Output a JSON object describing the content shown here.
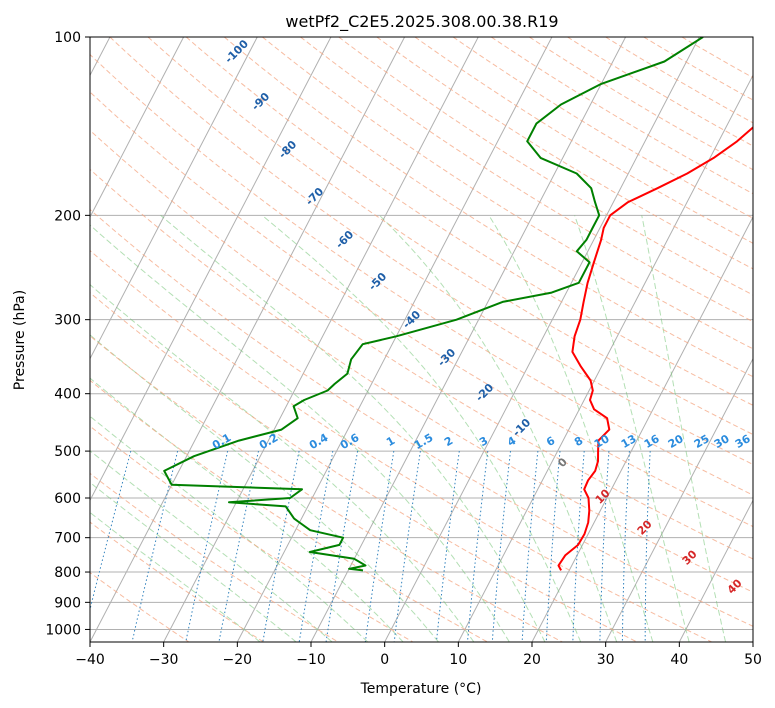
{
  "chart_data": {
    "type": "line",
    "title": "wetPf2_C2E5.2025.308.00.38.R19",
    "xlabel": "Temperature (°C)",
    "ylabel": "Pressure (hPa)",
    "xlim": [
      -40,
      50
    ],
    "ylim": [
      1050,
      100
    ],
    "y_scale": "log",
    "x_ticks": [
      -40,
      -30,
      -20,
      -10,
      0,
      10,
      20,
      30,
      40,
      50
    ],
    "y_ticks": [
      100,
      200,
      300,
      400,
      500,
      600,
      700,
      800,
      900,
      1000
    ],
    "grid": true,
    "series": [
      {
        "color": "#ff0000",
        "points": [
          [
            13,
            100
          ],
          [
            13.5,
            110
          ],
          [
            15,
            120
          ],
          [
            15.2,
            130
          ],
          [
            14,
            140
          ],
          [
            12.5,
            150
          ],
          [
            10.5,
            160
          ],
          [
            8,
            170
          ],
          [
            5,
            180
          ],
          [
            2,
            190
          ],
          [
            0.5,
            200
          ],
          [
            0.5,
            210
          ],
          [
            1,
            220
          ],
          [
            1.6,
            240
          ],
          [
            2.2,
            260
          ],
          [
            3,
            280
          ],
          [
            3.8,
            300
          ],
          [
            4.2,
            320
          ],
          [
            5,
            340
          ],
          [
            7.2,
            360
          ],
          [
            9.5,
            380
          ],
          [
            10.5,
            395
          ],
          [
            10.8,
            410
          ],
          [
            12,
            425
          ],
          [
            14.4,
            440
          ],
          [
            15.5,
            460
          ],
          [
            14.8,
            480
          ],
          [
            15.5,
            500
          ],
          [
            16.2,
            520
          ],
          [
            16.5,
            540
          ],
          [
            16.2,
            560
          ],
          [
            16.3,
            580
          ],
          [
            17.5,
            600
          ],
          [
            18.5,
            630
          ],
          [
            19.2,
            660
          ],
          [
            19.5,
            690
          ],
          [
            19.4,
            720
          ],
          [
            18.4,
            750
          ],
          [
            18.2,
            780
          ],
          [
            18.9,
            795
          ]
        ]
      },
      {
        "color": "#008000",
        "points": [
          [
            0.5,
            100
          ],
          [
            -3,
            110
          ],
          [
            -10,
            120
          ],
          [
            -14,
            130
          ],
          [
            -16,
            140
          ],
          [
            -16,
            150
          ],
          [
            -13,
            160
          ],
          [
            -7,
            170
          ],
          [
            -4,
            180
          ],
          [
            -2.5,
            190
          ],
          [
            -1,
            200
          ],
          [
            -1,
            210
          ],
          [
            -1,
            220
          ],
          [
            -1.5,
            230
          ],
          [
            1,
            240
          ],
          [
            1,
            260
          ],
          [
            -2,
            270
          ],
          [
            -8,
            280
          ],
          [
            -13,
            300
          ],
          [
            -20,
            320
          ],
          [
            -24,
            330
          ],
          [
            -24.5,
            350
          ],
          [
            -24,
            370
          ],
          [
            -25,
            385
          ],
          [
            -25.5,
            395
          ],
          [
            -28,
            410
          ],
          [
            -29,
            420
          ],
          [
            -27.6,
            440
          ],
          [
            -29,
            460
          ],
          [
            -34,
            480
          ],
          [
            -39,
            510
          ],
          [
            -42,
            540
          ],
          [
            -40,
            570
          ],
          [
            -22,
            580
          ],
          [
            -23,
            600
          ],
          [
            -31,
            610
          ],
          [
            -23,
            620
          ],
          [
            -21,
            650
          ],
          [
            -20,
            660
          ],
          [
            -18,
            680
          ],
          [
            -13,
            700
          ],
          [
            -13,
            720
          ],
          [
            -16.5,
            740
          ],
          [
            -10,
            760
          ],
          [
            -8,
            780
          ],
          [
            -10,
            790
          ],
          [
            -8,
            795
          ]
        ]
      }
    ],
    "dry_adiabat_labels": [
      "-100",
      "-90",
      "-80",
      "-70",
      "-60",
      "-50",
      "-40",
      "-30",
      "-20",
      "-10",
      "0",
      "10",
      "20",
      "30",
      "40"
    ],
    "mixing_ratio_labels": [
      "0.1",
      "0.2",
      "0.4",
      "0.6",
      "1",
      "1.5",
      "2",
      "3",
      "4",
      "6",
      "8",
      "10",
      "13",
      "16",
      "20",
      "25",
      "30",
      "36"
    ]
  }
}
